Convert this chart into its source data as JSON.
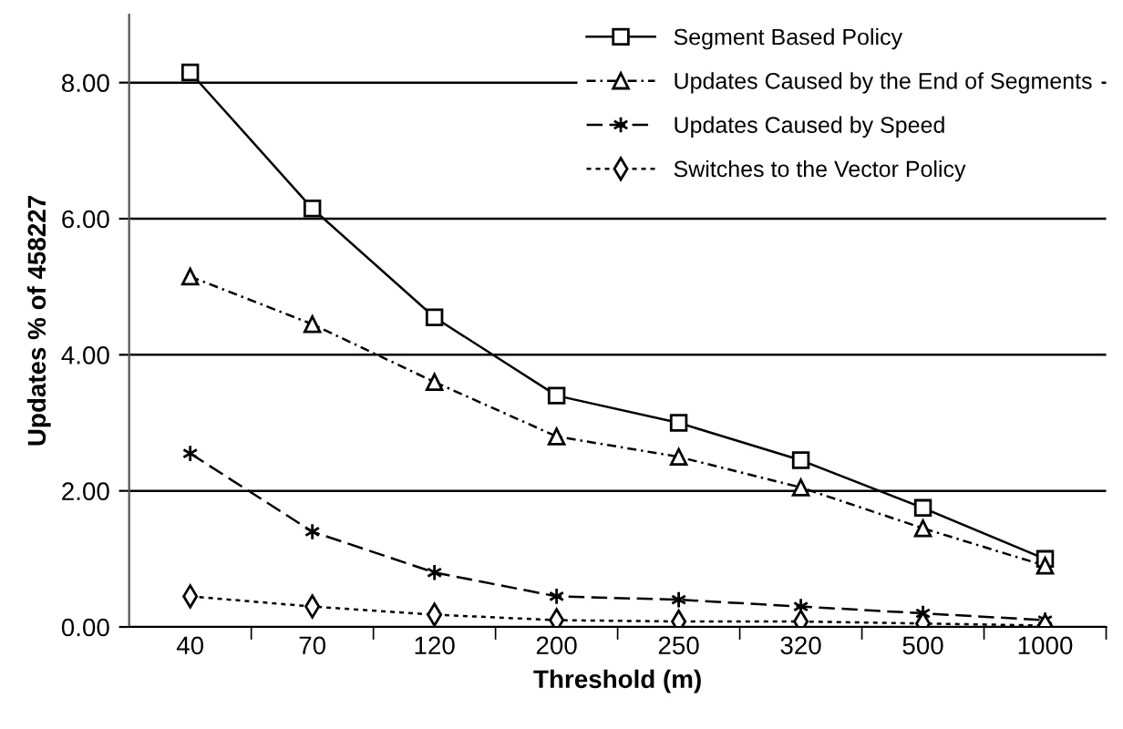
{
  "chart_data": {
    "type": "line",
    "xlabel": "Threshold (m)",
    "ylabel": "Updates % of 458227",
    "categories": [
      "40",
      "70",
      "120",
      "200",
      "250",
      "320",
      "500",
      "1000"
    ],
    "ylim": [
      0,
      9
    ],
    "yticks": [
      {
        "value": 0,
        "label": "0.00"
      },
      {
        "value": 2,
        "label": "2.00"
      },
      {
        "value": 4,
        "label": "4.00"
      },
      {
        "value": 6,
        "label": "6.00"
      },
      {
        "value": 8,
        "label": "8.00"
      }
    ],
    "grid": "y",
    "legend": "top right",
    "series": [
      {
        "name": "Segment Based Policy",
        "color": "#000000",
        "marker": "square",
        "line_style": "solid",
        "values": [
          8.15,
          6.15,
          4.55,
          3.4,
          3.0,
          2.45,
          1.75,
          1.0
        ]
      },
      {
        "name": "Updates Caused by the End of Segments",
        "color": "#000000",
        "marker": "triangle",
        "line_style": "dashdot",
        "values": [
          5.15,
          4.45,
          3.6,
          2.8,
          2.5,
          2.05,
          1.45,
          0.9
        ]
      },
      {
        "name": "Updates Caused by Speed",
        "color": "#000000",
        "marker": "cross",
        "line_style": "dashed",
        "values": [
          2.55,
          1.4,
          0.8,
          0.45,
          0.4,
          0.3,
          0.2,
          0.1
        ]
      },
      {
        "name": "Switches to the Vector Policy",
        "color": "#000000",
        "marker": "diamond",
        "line_style": "dotted",
        "values": [
          0.45,
          0.3,
          0.18,
          0.1,
          0.08,
          0.08,
          0.05,
          0.02
        ]
      }
    ]
  }
}
